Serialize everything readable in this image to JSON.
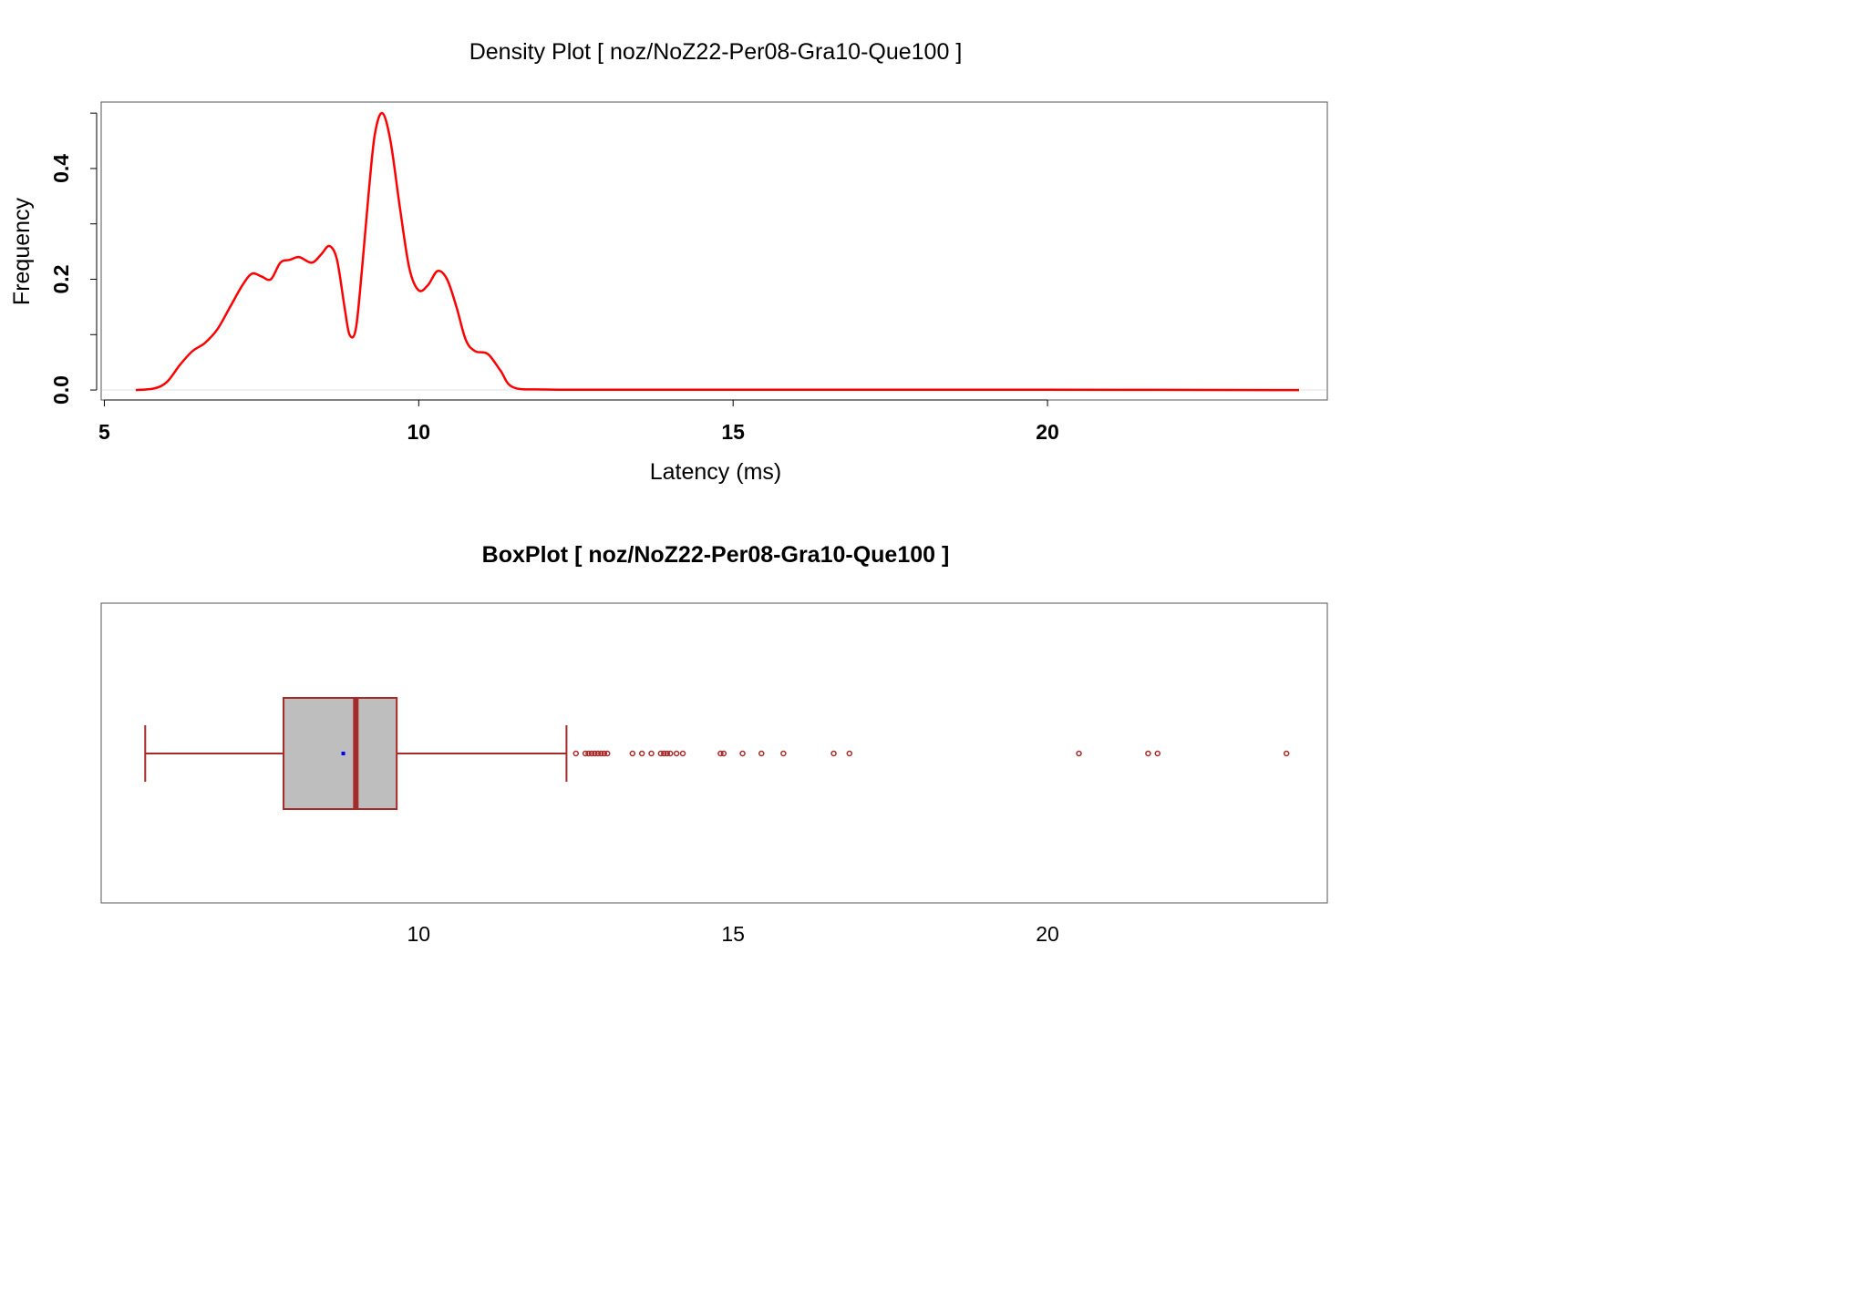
{
  "colors": {
    "density_line": "#ff0000",
    "box_outline": "#a52a2a",
    "box_fill": "#bebebe",
    "mean_marker": "#0000ff",
    "frame": "#555555",
    "baseline": "#e0e0e0"
  },
  "chart_data": [
    {
      "type": "line",
      "title": "Density Plot [ noz/NoZ22-Per08-Gra10-Que100 ]",
      "xlabel": "Latency (ms)",
      "ylabel": "Frequency",
      "xlim": [
        4.95,
        24.45
      ],
      "ylim": [
        -0.018,
        0.52
      ],
      "x_ticks": [
        5,
        10,
        15,
        20
      ],
      "x_tick_labels": [
        "5",
        "10",
        "15",
        "20"
      ],
      "y_ticks": [
        0.0,
        0.1,
        0.2,
        0.3,
        0.4,
        0.5
      ],
      "y_tick_labels": [
        "0.0",
        "",
        "0.2",
        "",
        "0.4",
        ""
      ],
      "series": [
        {
          "color": "#ff0000",
          "x": [
            5.5,
            5.8,
            6.0,
            6.2,
            6.4,
            6.6,
            6.8,
            7.0,
            7.2,
            7.35,
            7.5,
            7.65,
            7.8,
            7.95,
            8.1,
            8.3,
            8.45,
            8.58,
            8.7,
            8.82,
            8.9,
            9.0,
            9.1,
            9.2,
            9.3,
            9.42,
            9.55,
            9.7,
            9.85,
            10.0,
            10.15,
            10.3,
            10.45,
            10.6,
            10.75,
            10.9,
            11.1,
            11.3,
            11.5,
            12.0,
            13.0,
            15.0,
            20.0,
            24.0
          ],
          "y": [
            0.0,
            0.003,
            0.015,
            0.045,
            0.07,
            0.085,
            0.11,
            0.15,
            0.19,
            0.21,
            0.205,
            0.2,
            0.23,
            0.235,
            0.24,
            0.23,
            0.245,
            0.26,
            0.235,
            0.15,
            0.1,
            0.11,
            0.22,
            0.35,
            0.46,
            0.5,
            0.45,
            0.33,
            0.22,
            0.18,
            0.19,
            0.215,
            0.2,
            0.15,
            0.09,
            0.07,
            0.065,
            0.035,
            0.005,
            0.001,
            0.0005,
            0.0005,
            0.0005,
            0.0
          ]
        }
      ]
    },
    {
      "type": "box",
      "title": "BoxPlot [ noz/NoZ22-Per08-Gra10-Que100 ]",
      "xlim": [
        4.95,
        24.45
      ],
      "x_ticks": [
        10,
        15,
        20
      ],
      "x_tick_labels": [
        "10",
        "15",
        "20"
      ],
      "whisker_low": 5.65,
      "q1": 7.85,
      "median": 9.0,
      "q3": 9.65,
      "whisker_high": 12.35,
      "mean": 8.8,
      "outliers": [
        12.5,
        12.65,
        12.7,
        12.75,
        12.8,
        12.85,
        12.9,
        12.95,
        13.0,
        13.4,
        13.55,
        13.7,
        13.85,
        13.9,
        13.95,
        14.0,
        14.1,
        14.2,
        14.8,
        14.85,
        15.15,
        15.45,
        15.8,
        16.6,
        16.85,
        20.5,
        21.6,
        21.75,
        23.8
      ]
    }
  ]
}
